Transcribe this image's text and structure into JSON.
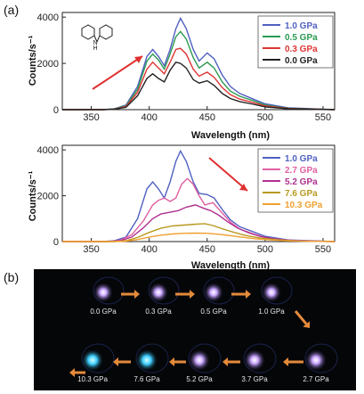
{
  "panel_labels": {
    "a": "(a)",
    "b": "(b)"
  },
  "chart_data": [
    {
      "type": "line",
      "xlabel": "Wavelength (nm)",
      "ylabel": "Counts/s⁻¹",
      "xlim": [
        325,
        560
      ],
      "ylim": [
        0,
        4200
      ],
      "xticks": [
        350,
        400,
        450,
        500,
        550
      ],
      "yticks": [
        0,
        2000,
        4000
      ],
      "legend_position": "top-right",
      "inset": "carbazole structure",
      "annotation": "arrow pointing up-right (intensity increasing)",
      "series": [
        {
          "name": "1.0 GPa",
          "color": "#5060c0",
          "points": [
            [
              325,
              0
            ],
            [
              360,
              0
            ],
            [
              370,
              40
            ],
            [
              380,
              200
            ],
            [
              390,
              1000
            ],
            [
              398,
              2300
            ],
            [
              403,
              2600
            ],
            [
              408,
              2300
            ],
            [
              413,
              1900
            ],
            [
              418,
              2600
            ],
            [
              423,
              3500
            ],
            [
              427,
              3950
            ],
            [
              432,
              3500
            ],
            [
              438,
              2600
            ],
            [
              443,
              2100
            ],
            [
              450,
              2450
            ],
            [
              456,
              2200
            ],
            [
              463,
              1500
            ],
            [
              470,
              1000
            ],
            [
              478,
              700
            ],
            [
              490,
              450
            ],
            [
              500,
              250
            ],
            [
              520,
              80
            ],
            [
              560,
              0
            ]
          ]
        },
        {
          "name": "0.5 GPa",
          "color": "#2a9a50",
          "points": [
            [
              325,
              0
            ],
            [
              360,
              0
            ],
            [
              370,
              30
            ],
            [
              380,
              160
            ],
            [
              390,
              880
            ],
            [
              398,
              2100
            ],
            [
              403,
              2400
            ],
            [
              408,
              2150
            ],
            [
              413,
              1750
            ],
            [
              418,
              2400
            ],
            [
              423,
              3150
            ],
            [
              427,
              3380
            ],
            [
              432,
              3050
            ],
            [
              438,
              2250
            ],
            [
              443,
              1800
            ],
            [
              450,
              2050
            ],
            [
              456,
              1800
            ],
            [
              463,
              1200
            ],
            [
              470,
              800
            ],
            [
              478,
              580
            ],
            [
              490,
              380
            ],
            [
              500,
              200
            ],
            [
              520,
              60
            ],
            [
              560,
              0
            ]
          ]
        },
        {
          "name": "0.3 GPa",
          "color": "#e03535",
          "points": [
            [
              325,
              0
            ],
            [
              360,
              0
            ],
            [
              370,
              25
            ],
            [
              380,
              130
            ],
            [
              390,
              750
            ],
            [
              398,
              1750
            ],
            [
              403,
              2050
            ],
            [
              408,
              1800
            ],
            [
              413,
              1550
            ],
            [
              418,
              2050
            ],
            [
              423,
              2600
            ],
            [
              427,
              2650
            ],
            [
              432,
              2400
            ],
            [
              438,
              1750
            ],
            [
              443,
              1450
            ],
            [
              450,
              1620
            ],
            [
              456,
              1400
            ],
            [
              463,
              950
            ],
            [
              470,
              650
            ],
            [
              478,
              460
            ],
            [
              490,
              300
            ],
            [
              500,
              160
            ],
            [
              520,
              50
            ],
            [
              560,
              0
            ]
          ]
        },
        {
          "name": "0.0 GPa",
          "color": "#222222",
          "points": [
            [
              325,
              0
            ],
            [
              360,
              0
            ],
            [
              370,
              20
            ],
            [
              380,
              100
            ],
            [
              390,
              600
            ],
            [
              398,
              1350
            ],
            [
              403,
              1550
            ],
            [
              408,
              1350
            ],
            [
              413,
              1200
            ],
            [
              418,
              1700
            ],
            [
              423,
              2050
            ],
            [
              427,
              2000
            ],
            [
              432,
              1800
            ],
            [
              438,
              1300
            ],
            [
              443,
              1150
            ],
            [
              450,
              1250
            ],
            [
              456,
              1050
            ],
            [
              463,
              700
            ],
            [
              470,
              480
            ],
            [
              478,
              350
            ],
            [
              490,
              230
            ],
            [
              500,
              120
            ],
            [
              520,
              40
            ],
            [
              560,
              0
            ]
          ]
        }
      ]
    },
    {
      "type": "line",
      "xlabel": "Wavelength (nm)",
      "ylabel": "Counts/s⁻¹",
      "xlim": [
        325,
        560
      ],
      "ylim": [
        0,
        4200
      ],
      "xticks": [
        350,
        400,
        450,
        500,
        550
      ],
      "yticks": [
        0,
        2000,
        4000
      ],
      "legend_position": "top-right",
      "annotation": "arrow pointing down-right (intensity decreasing)",
      "series": [
        {
          "name": "1.0 GPa",
          "color": "#5060c0",
          "points": [
            [
              325,
              0
            ],
            [
              360,
              0
            ],
            [
              370,
              40
            ],
            [
              380,
              200
            ],
            [
              390,
              1000
            ],
            [
              398,
              2300
            ],
            [
              403,
              2600
            ],
            [
              408,
              2300
            ],
            [
              413,
              1900
            ],
            [
              418,
              2600
            ],
            [
              423,
              3500
            ],
            [
              427,
              3950
            ],
            [
              432,
              3500
            ],
            [
              438,
              2600
            ],
            [
              443,
              2100
            ],
            [
              450,
              2050
            ],
            [
              456,
              1900
            ],
            [
              463,
              1400
            ],
            [
              470,
              950
            ],
            [
              478,
              650
            ],
            [
              490,
              420
            ],
            [
              500,
              230
            ],
            [
              520,
              70
            ],
            [
              560,
              0
            ]
          ]
        },
        {
          "name": "2.7 GPa",
          "color": "#e060a0",
          "points": [
            [
              325,
              0
            ],
            [
              365,
              0
            ],
            [
              375,
              60
            ],
            [
              385,
              300
            ],
            [
              395,
              900
            ],
            [
              403,
              1600
            ],
            [
              408,
              1800
            ],
            [
              413,
              1900
            ],
            [
              418,
              1750
            ],
            [
              423,
              1900
            ],
            [
              428,
              2500
            ],
            [
              433,
              2750
            ],
            [
              438,
              2500
            ],
            [
              443,
              2000
            ],
            [
              448,
              1600
            ],
            [
              455,
              1700
            ],
            [
              462,
              1300
            ],
            [
              470,
              850
            ],
            [
              478,
              550
            ],
            [
              490,
              330
            ],
            [
              500,
              180
            ],
            [
              520,
              50
            ],
            [
              560,
              0
            ]
          ]
        },
        {
          "name": "5.2 GPa",
          "color": "#b03090",
          "points": [
            [
              325,
              0
            ],
            [
              365,
              0
            ],
            [
              375,
              40
            ],
            [
              385,
              200
            ],
            [
              395,
              600
            ],
            [
              403,
              1000
            ],
            [
              410,
              1200
            ],
            [
              418,
              1280
            ],
            [
              425,
              1350
            ],
            [
              432,
              1500
            ],
            [
              440,
              1600
            ],
            [
              447,
              1450
            ],
            [
              453,
              1350
            ],
            [
              460,
              1150
            ],
            [
              468,
              850
            ],
            [
              476,
              600
            ],
            [
              486,
              380
            ],
            [
              496,
              220
            ],
            [
              510,
              100
            ],
            [
              530,
              30
            ],
            [
              560,
              0
            ]
          ]
        },
        {
          "name": "7.6 GPa",
          "color": "#b89a20",
          "points": [
            [
              325,
              0
            ],
            [
              370,
              0
            ],
            [
              380,
              40
            ],
            [
              390,
              180
            ],
            [
              400,
              400
            ],
            [
              410,
              580
            ],
            [
              420,
              680
            ],
            [
              430,
              720
            ],
            [
              440,
              760
            ],
            [
              448,
              780
            ],
            [
              455,
              700
            ],
            [
              463,
              560
            ],
            [
              472,
              420
            ],
            [
              482,
              280
            ],
            [
              495,
              160
            ],
            [
              510,
              80
            ],
            [
              530,
              25
            ],
            [
              560,
              0
            ]
          ]
        },
        {
          "name": "10.3 GPa",
          "color": "#f0a030",
          "points": [
            [
              325,
              0
            ],
            [
              370,
              0
            ],
            [
              380,
              20
            ],
            [
              390,
              90
            ],
            [
              400,
              200
            ],
            [
              410,
              280
            ],
            [
              420,
              330
            ],
            [
              430,
              360
            ],
            [
              440,
              370
            ],
            [
              450,
              360
            ],
            [
              460,
              320
            ],
            [
              470,
              260
            ],
            [
              480,
              190
            ],
            [
              492,
              120
            ],
            [
              505,
              70
            ],
            [
              520,
              30
            ],
            [
              540,
              10
            ],
            [
              560,
              0
            ]
          ]
        }
      ]
    }
  ],
  "photos": {
    "row1": [
      "0.0 GPa",
      "0.3 GPa",
      "0.5 GPa",
      "1.0 GPa"
    ],
    "row2": [
      "10.3 GPa",
      "7.6 GPa",
      "5.2 GPa",
      "3.7 GPa",
      "2.7 GPa"
    ],
    "colors": {
      "glow": "#c9a6ff",
      "cyan_glow": "#3fd0ff",
      "arrow": "#e58a3a"
    }
  }
}
